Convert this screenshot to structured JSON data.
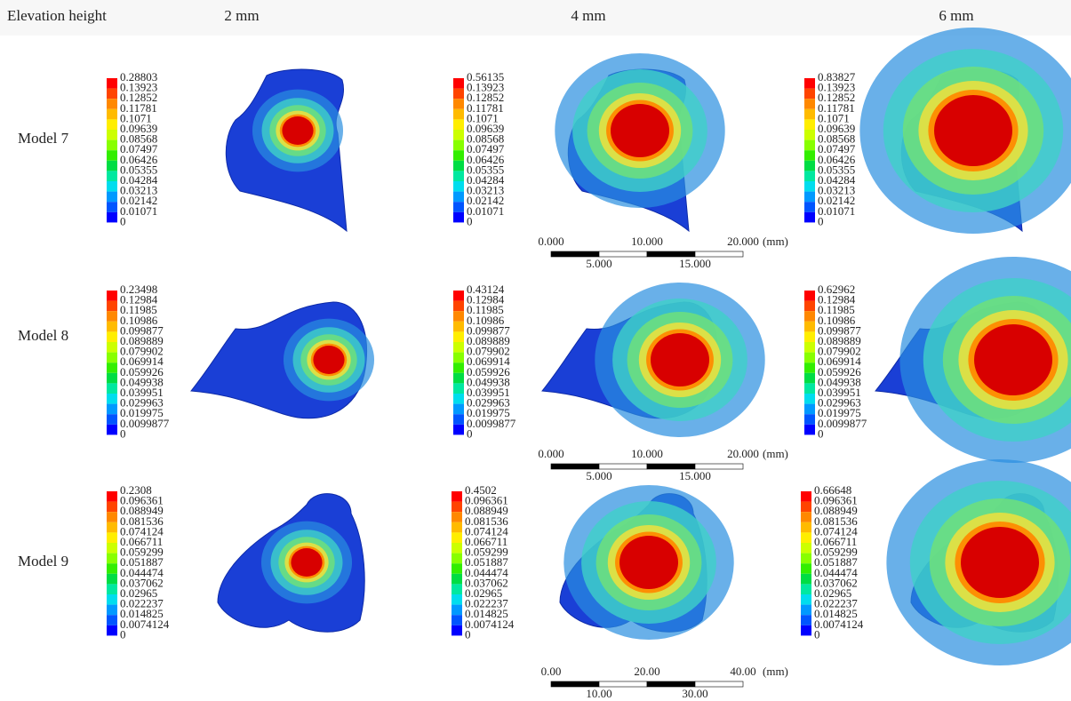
{
  "header": {
    "row_label": "Elevation height",
    "columns": [
      "2 mm",
      "4 mm",
      "6 mm"
    ]
  },
  "rows": [
    {
      "label": "Model 7",
      "legends": [
        [
          "0.28803",
          "0.13923",
          "0.12852",
          "0.11781",
          "0.1071",
          "0.09639",
          "0.08568",
          "0.07497",
          "0.06426",
          "0.05355",
          "0.04284",
          "0.03213",
          "0.02142",
          "0.01071",
          "0"
        ],
        [
          "0.56135",
          "0.13923",
          "0.12852",
          "0.11781",
          "0.1071",
          "0.09639",
          "0.08568",
          "0.07497",
          "0.06426",
          "0.05355",
          "0.04284",
          "0.03213",
          "0.02142",
          "0.01071",
          "0"
        ],
        [
          "0.83827",
          "0.13923",
          "0.12852",
          "0.11781",
          "0.1071",
          "0.09639",
          "0.08568",
          "0.07497",
          "0.06426",
          "0.05355",
          "0.04284",
          "0.03213",
          "0.02142",
          "0.01071",
          "0"
        ]
      ]
    },
    {
      "label": "Model 8",
      "legends": [
        [
          "0.23498",
          "0.12984",
          "0.11985",
          "0.10986",
          "0.099877",
          "0.089889",
          "0.079902",
          "0.069914",
          "0.059926",
          "0.049938",
          "0.039951",
          "0.029963",
          "0.019975",
          "0.0099877",
          "0"
        ],
        [
          "0.43124",
          "0.12984",
          "0.11985",
          "0.10986",
          "0.099877",
          "0.089889",
          "0.079902",
          "0.069914",
          "0.059926",
          "0.049938",
          "0.039951",
          "0.029963",
          "0.019975",
          "0.0099877",
          "0"
        ],
        [
          "0.62962",
          "0.12984",
          "0.11985",
          "0.10986",
          "0.099877",
          "0.089889",
          "0.079902",
          "0.069914",
          "0.059926",
          "0.049938",
          "0.039951",
          "0.029963",
          "0.019975",
          "0.0099877",
          "0"
        ]
      ]
    },
    {
      "label": "Model 9",
      "legends": [
        [
          "0.2308",
          "0.096361",
          "0.088949",
          "0.081536",
          "0.074124",
          "0.066711",
          "0.059299",
          "0.051887",
          "0.044474",
          "0.037062",
          "0.02965",
          "0.022237",
          "0.014825",
          "0.0074124",
          "0"
        ],
        [
          "0.4502",
          "0.096361",
          "0.088949",
          "0.081536",
          "0.074124",
          "0.066711",
          "0.059299",
          "0.051887",
          "0.044474",
          "0.037062",
          "0.02965",
          "0.022237",
          "0.014825",
          "0.0074124",
          "0"
        ],
        [
          "0.66648",
          "0.096361",
          "0.088949",
          "0.081536",
          "0.074124",
          "0.066711",
          "0.059299",
          "0.051887",
          "0.044474",
          "0.037062",
          "0.02965",
          "0.022237",
          "0.014825",
          "0.0074124",
          "0"
        ]
      ]
    }
  ],
  "scale_bars": [
    {
      "top": [
        "0.000",
        "10.000",
        "20.000"
      ],
      "unit": "(mm)",
      "bottom": [
        "5.000",
        "15.000"
      ]
    },
    {
      "top": [
        "0.000",
        "10.000",
        "20.000"
      ],
      "unit": "(mm)",
      "bottom": [
        "5.000",
        "15.000"
      ]
    },
    {
      "top": [
        "0.00",
        "20.00",
        "40.00"
      ],
      "unit": "(mm)",
      "bottom": [
        "10.00",
        "30.00"
      ]
    }
  ]
}
